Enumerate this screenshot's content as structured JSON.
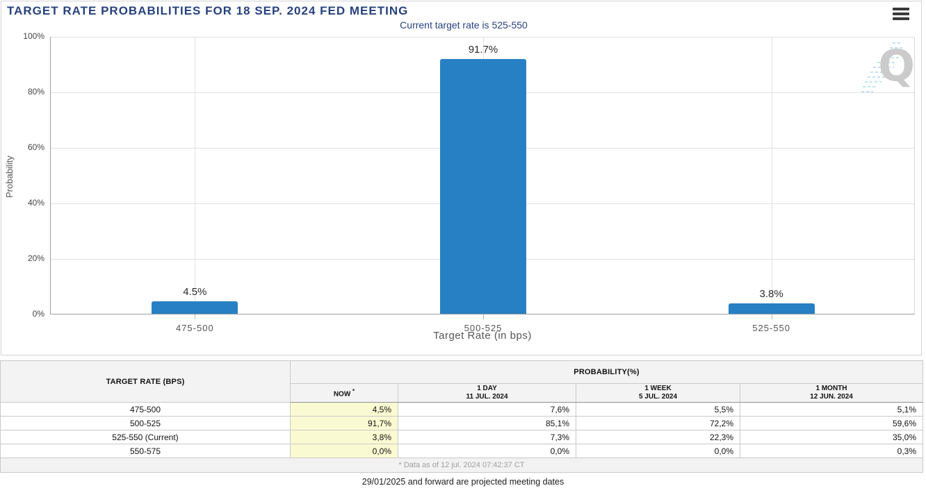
{
  "colors": {
    "accent_navy": "#26427e",
    "bar_blue": "#2780c3",
    "now_highlight": "#fafad2",
    "header_bg": "#f3f3f3"
  },
  "header": {
    "menu_icon": "hamburger-menu-icon"
  },
  "chart_data": {
    "type": "bar",
    "title": "TARGET RATE PROBABILITIES FOR 18 SEP. 2024 FED MEETING",
    "subtitle": "Current target rate is 525-550",
    "categories": [
      "475-500",
      "500-525",
      "525-550"
    ],
    "values": [
      4.5,
      91.7,
      3.8
    ],
    "bar_labels": [
      "4.5%",
      "91.7%",
      "3.8%"
    ],
    "xlabel": "Target Rate (in bps)",
    "ylabel": "Probability",
    "y_ticks": [
      "100%",
      "80%",
      "60%",
      "40%",
      "20%",
      "0%"
    ],
    "ylim": [
      0,
      100
    ],
    "grid": true,
    "legend": false,
    "bar_color": "#2780c3",
    "watermark_letter": "Q"
  },
  "table": {
    "col_target_rate": "TARGET RATE (BPS)",
    "col_probability": "PROBABILITY(%)",
    "subheaders": [
      {
        "label": "NOW",
        "sup": "*",
        "date": ""
      },
      {
        "label": "1 DAY",
        "sup": "",
        "date": "11 JUL. 2024"
      },
      {
        "label": "1 WEEK",
        "sup": "",
        "date": "5 JUL. 2024"
      },
      {
        "label": "1 MONTH",
        "sup": "",
        "date": "12 JUN. 2024"
      }
    ],
    "rows": [
      {
        "label": "475-500",
        "now": "4,5%",
        "day": "7,6%",
        "week": "5,5%",
        "month": "5,1%"
      },
      {
        "label": "500-525",
        "now": "91,7%",
        "day": "85,1%",
        "week": "72,2%",
        "month": "59,6%"
      },
      {
        "label": "525-550 (Current)",
        "now": "3,8%",
        "day": "7,3%",
        "week": "22,3%",
        "month": "35,0%"
      },
      {
        "label": "550-575",
        "now": "0,0%",
        "day": "0,0%",
        "week": "0,0%",
        "month": "0,3%"
      }
    ],
    "footnote": "* Data as of 12 jul. 2024 07:42:37 CT"
  },
  "footer": {
    "note": "29/01/2025 and forward are projected meeting dates"
  }
}
